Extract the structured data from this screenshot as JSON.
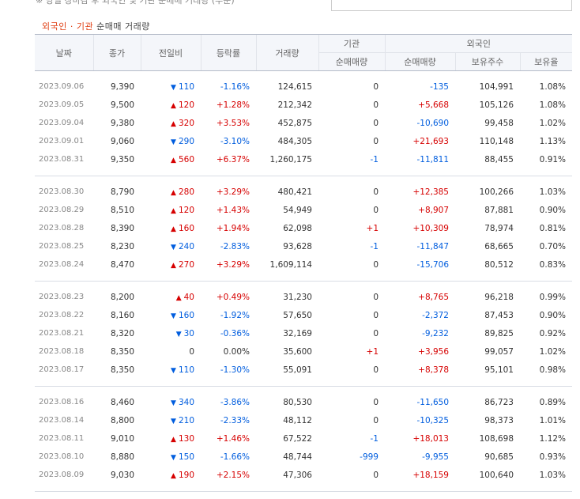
{
  "top_note": "※ 당일 장마감 후 외국인 및 기관 순매매 거래량 (부분)",
  "caption": {
    "foreign": "외국인",
    "dot": " · ",
    "inst": "기관",
    "rest": " 순매매 거래량"
  },
  "headers": {
    "date": "날짜",
    "close": "종가",
    "change": "전일비",
    "rate": "등락률",
    "volume": "거래량",
    "inst_group": "기관",
    "inst_net": "순매매량",
    "foreign_group": "외국인",
    "foreign_net": "순매매량",
    "foreign_hold": "보유주수",
    "foreign_ratio": "보유율"
  },
  "groups": [
    {
      "rows": [
        {
          "date": "2023.09.06",
          "close": "9,390",
          "dir": "down",
          "change": "110",
          "rate": "-1.16%",
          "volume": "124,615",
          "inst": "0",
          "foreign": "-135",
          "hold": "104,991",
          "ratio": "1.08%"
        },
        {
          "date": "2023.09.05",
          "close": "9,500",
          "dir": "up",
          "change": "120",
          "rate": "+1.28%",
          "volume": "212,342",
          "inst": "0",
          "foreign": "+5,668",
          "hold": "105,126",
          "ratio": "1.08%"
        },
        {
          "date": "2023.09.04",
          "close": "9,380",
          "dir": "up",
          "change": "320",
          "rate": "+3.53%",
          "volume": "452,875",
          "inst": "0",
          "foreign": "-10,690",
          "hold": "99,458",
          "ratio": "1.02%"
        },
        {
          "date": "2023.09.01",
          "close": "9,060",
          "dir": "down",
          "change": "290",
          "rate": "-3.10%",
          "volume": "484,305",
          "inst": "0",
          "foreign": "+21,693",
          "hold": "110,148",
          "ratio": "1.13%"
        },
        {
          "date": "2023.08.31",
          "close": "9,350",
          "dir": "up",
          "change": "560",
          "rate": "+6.37%",
          "volume": "1,260,175",
          "inst": "-1",
          "foreign": "-11,811",
          "hold": "88,455",
          "ratio": "0.91%"
        }
      ]
    },
    {
      "rows": [
        {
          "date": "2023.08.30",
          "close": "8,790",
          "dir": "up",
          "change": "280",
          "rate": "+3.29%",
          "volume": "480,421",
          "inst": "0",
          "foreign": "+12,385",
          "hold": "100,266",
          "ratio": "1.03%"
        },
        {
          "date": "2023.08.29",
          "close": "8,510",
          "dir": "up",
          "change": "120",
          "rate": "+1.43%",
          "volume": "54,949",
          "inst": "0",
          "foreign": "+8,907",
          "hold": "87,881",
          "ratio": "0.90%"
        },
        {
          "date": "2023.08.28",
          "close": "8,390",
          "dir": "up",
          "change": "160",
          "rate": "+1.94%",
          "volume": "62,098",
          "inst": "+1",
          "foreign": "+10,309",
          "hold": "78,974",
          "ratio": "0.81%"
        },
        {
          "date": "2023.08.25",
          "close": "8,230",
          "dir": "down",
          "change": "240",
          "rate": "-2.83%",
          "volume": "93,628",
          "inst": "-1",
          "foreign": "-11,847",
          "hold": "68,665",
          "ratio": "0.70%"
        },
        {
          "date": "2023.08.24",
          "close": "8,470",
          "dir": "up",
          "change": "270",
          "rate": "+3.29%",
          "volume": "1,609,114",
          "inst": "0",
          "foreign": "-15,706",
          "hold": "80,512",
          "ratio": "0.83%"
        }
      ]
    },
    {
      "rows": [
        {
          "date": "2023.08.23",
          "close": "8,200",
          "dir": "up",
          "change": "40",
          "rate": "+0.49%",
          "volume": "31,230",
          "inst": "0",
          "foreign": "+8,765",
          "hold": "96,218",
          "ratio": "0.99%"
        },
        {
          "date": "2023.08.22",
          "close": "8,160",
          "dir": "down",
          "change": "160",
          "rate": "-1.92%",
          "volume": "57,650",
          "inst": "0",
          "foreign": "-2,372",
          "hold": "87,453",
          "ratio": "0.90%"
        },
        {
          "date": "2023.08.21",
          "close": "8,320",
          "dir": "down",
          "change": "30",
          "rate": "-0.36%",
          "volume": "32,169",
          "inst": "0",
          "foreign": "-9,232",
          "hold": "89,825",
          "ratio": "0.92%"
        },
        {
          "date": "2023.08.18",
          "close": "8,350",
          "dir": "none",
          "change": "0",
          "rate": "0.00%",
          "volume": "35,600",
          "inst": "+1",
          "foreign": "+3,956",
          "hold": "99,057",
          "ratio": "1.02%"
        },
        {
          "date": "2023.08.17",
          "close": "8,350",
          "dir": "down",
          "change": "110",
          "rate": "-1.30%",
          "volume": "55,091",
          "inst": "0",
          "foreign": "+8,378",
          "hold": "95,101",
          "ratio": "0.98%"
        }
      ]
    },
    {
      "rows": [
        {
          "date": "2023.08.16",
          "close": "8,460",
          "dir": "down",
          "change": "340",
          "rate": "-3.86%",
          "volume": "80,530",
          "inst": "0",
          "foreign": "-11,650",
          "hold": "86,723",
          "ratio": "0.89%"
        },
        {
          "date": "2023.08.14",
          "close": "8,800",
          "dir": "down",
          "change": "210",
          "rate": "-2.33%",
          "volume": "48,112",
          "inst": "0",
          "foreign": "-10,325",
          "hold": "98,373",
          "ratio": "1.01%"
        },
        {
          "date": "2023.08.11",
          "close": "9,010",
          "dir": "up",
          "change": "130",
          "rate": "+1.46%",
          "volume": "67,522",
          "inst": "-1",
          "foreign": "+18,013",
          "hold": "108,698",
          "ratio": "1.12%"
        },
        {
          "date": "2023.08.10",
          "close": "8,880",
          "dir": "down",
          "change": "150",
          "rate": "-1.66%",
          "volume": "48,744",
          "inst": "-999",
          "foreign": "-9,955",
          "hold": "90,685",
          "ratio": "0.93%"
        },
        {
          "date": "2023.08.09",
          "close": "9,030",
          "dir": "up",
          "change": "190",
          "rate": "+2.15%",
          "volume": "47,306",
          "inst": "0",
          "foreign": "+18,159",
          "hold": "100,640",
          "ratio": "1.03%"
        }
      ]
    }
  ],
  "colors": {
    "up": "#d60000",
    "down": "#005dde",
    "caption_accent": "#e03e12"
  },
  "icons": {
    "up": "triangle-up-icon",
    "down": "triangle-down-icon"
  }
}
